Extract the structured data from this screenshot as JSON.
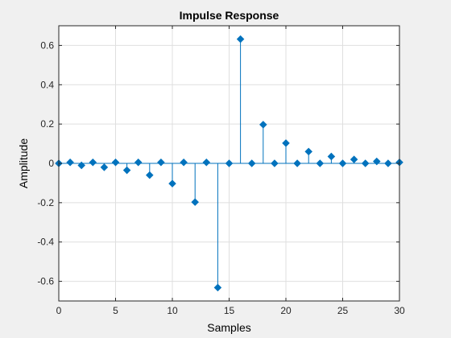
{
  "chart_data": {
    "type": "stem",
    "title": "Impulse Response",
    "xlabel": "Samples",
    "ylabel": "Amplitude",
    "xlim": [
      0,
      30
    ],
    "ylim": [
      -0.7,
      0.7
    ],
    "grid": true,
    "xticks": [
      0,
      5,
      10,
      15,
      20,
      25,
      30
    ],
    "xtick_labels": [
      "0",
      "5",
      "10",
      "15",
      "20",
      "25",
      "30"
    ],
    "yticks": [
      0.6,
      0.4,
      0.2,
      0,
      -0.2,
      -0.4,
      -0.6
    ],
    "ytick_labels": [
      "0.6",
      "0.4",
      "0.2",
      "0",
      "-0.2",
      "-0.4",
      "-0.6"
    ],
    "x": [
      0,
      1,
      2,
      3,
      4,
      5,
      6,
      7,
      8,
      9,
      10,
      11,
      12,
      13,
      14,
      15,
      16,
      17,
      18,
      19,
      20,
      21,
      22,
      23,
      24,
      25,
      26,
      27,
      28,
      29,
      30
    ],
    "values": [
      0,
      0.005,
      -0.01,
      0.005,
      -0.02,
      0.005,
      -0.035,
      0.005,
      -0.06,
      0.005,
      -0.103,
      0.005,
      -0.197,
      0.005,
      -0.632,
      0,
      0.632,
      0,
      0.197,
      0,
      0.103,
      0,
      0.06,
      0,
      0.035,
      0,
      0.02,
      0,
      0.01,
      0,
      0.005
    ],
    "colors": {
      "series": "#0072BD",
      "marker_fill": "#0072BD",
      "grid": "#dfdfdf",
      "axis": "#262626",
      "plot_bg": "#ffffff",
      "figure_bg": "#f0f0f0"
    }
  }
}
